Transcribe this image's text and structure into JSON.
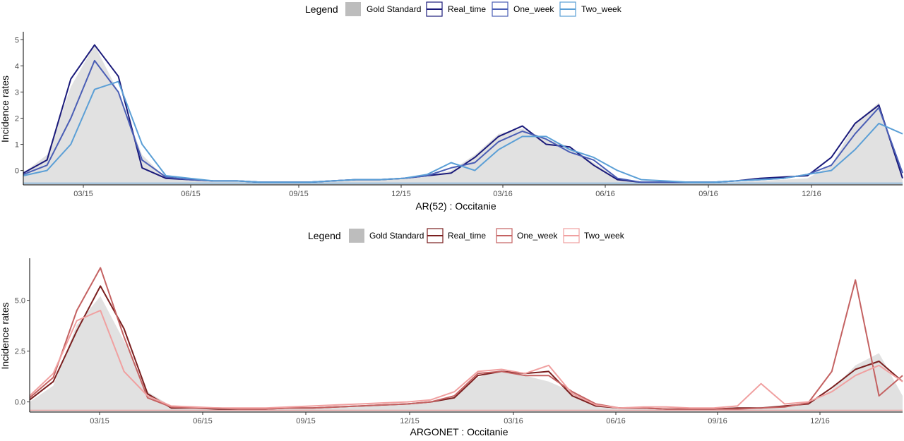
{
  "chart_data": [
    {
      "type": "line",
      "title": "",
      "xlabel": "AR(52) : Occitanie",
      "ylabel": "Incidence rates",
      "legend": {
        "title": "Legend",
        "placement": "top",
        "items": [
          {
            "label": "Gold Standard",
            "kind": "area",
            "color": "#bdbdbd"
          },
          {
            "label": "Real_time",
            "kind": "line",
            "color": "#1a1a7a"
          },
          {
            "label": "One_week",
            "kind": "line",
            "color": "#4a5eb5"
          },
          {
            "label": "Two_week",
            "kind": "line",
            "color": "#5b9fd6"
          }
        ]
      },
      "x_ticks": [
        "03/15",
        "06/15",
        "09/15",
        "12/15",
        "03/16",
        "06/16",
        "09/16",
        "12/16"
      ],
      "y_ticks": [
        "0",
        "1",
        "2",
        "3",
        "4",
        "5"
      ],
      "ylim": [
        -0.55,
        5.25
      ],
      "grid": false,
      "x_points": [
        0,
        3,
        6,
        9,
        12,
        15,
        18,
        21,
        24,
        27,
        30,
        33,
        36,
        39,
        42,
        45,
        48,
        51,
        54,
        57,
        60,
        63,
        66,
        69,
        72,
        75,
        78,
        81,
        84,
        87,
        90,
        93,
        96,
        99,
        102,
        105,
        108,
        111
      ],
      "series": [
        {
          "name": "Gold Standard",
          "values": [
            -0.1,
            0.6,
            3.2,
            4.8,
            3.0,
            0.6,
            -0.3,
            -0.35,
            -0.4,
            -0.4,
            -0.45,
            -0.45,
            -0.45,
            -0.4,
            -0.35,
            -0.35,
            -0.3,
            -0.2,
            0.0,
            0.6,
            1.4,
            1.6,
            1.2,
            0.9,
            0.3,
            -0.3,
            -0.45,
            -0.45,
            -0.45,
            -0.45,
            -0.45,
            -0.4,
            -0.35,
            -0.3,
            0.2,
            1.8,
            2.6,
            -0.4
          ]
        },
        {
          "name": "Real_time",
          "values": [
            -0.1,
            0.4,
            3.5,
            4.8,
            3.6,
            0.1,
            -0.3,
            -0.35,
            -0.4,
            -0.4,
            -0.45,
            -0.45,
            -0.45,
            -0.4,
            -0.35,
            -0.35,
            -0.3,
            -0.2,
            -0.1,
            0.5,
            1.3,
            1.7,
            1.0,
            0.9,
            0.2,
            -0.35,
            -0.45,
            -0.45,
            -0.45,
            -0.45,
            -0.4,
            -0.3,
            -0.25,
            -0.2,
            0.5,
            1.8,
            2.5,
            -0.3
          ]
        },
        {
          "name": "One_week",
          "values": [
            -0.15,
            0.2,
            2.0,
            4.2,
            3.0,
            0.4,
            -0.25,
            -0.35,
            -0.4,
            -0.4,
            -0.45,
            -0.45,
            -0.45,
            -0.4,
            -0.35,
            -0.35,
            -0.3,
            -0.2,
            0.1,
            0.3,
            1.1,
            1.5,
            1.2,
            0.7,
            0.4,
            -0.3,
            -0.45,
            -0.45,
            -0.45,
            -0.45,
            -0.4,
            -0.35,
            -0.3,
            -0.15,
            0.2,
            1.4,
            2.4,
            -0.1
          ]
        },
        {
          "name": "Two_week",
          "values": [
            -0.2,
            0.0,
            1.0,
            3.1,
            3.4,
            1.0,
            -0.2,
            -0.3,
            -0.4,
            -0.4,
            -0.45,
            -0.45,
            -0.45,
            -0.4,
            -0.35,
            -0.35,
            -0.3,
            -0.15,
            0.3,
            0.0,
            0.8,
            1.3,
            1.3,
            0.8,
            0.5,
            0.0,
            -0.35,
            -0.4,
            -0.45,
            -0.45,
            -0.4,
            -0.35,
            -0.3,
            -0.15,
            0.0,
            0.8,
            1.8,
            1.4
          ]
        }
      ]
    },
    {
      "type": "line",
      "title": "",
      "xlabel": "ARGONET : Occitanie",
      "ylabel": "Incidence rates",
      "legend": {
        "title": "Legend",
        "placement": "top",
        "items": [
          {
            "label": "Gold Standard",
            "kind": "area",
            "color": "#bdbdbd"
          },
          {
            "label": "Real_time",
            "kind": "line",
            "color": "#7a1f1f"
          },
          {
            "label": "One_week",
            "kind": "line",
            "color": "#c46262"
          },
          {
            "label": "Two_week",
            "kind": "line",
            "color": "#f0a0a0"
          }
        ]
      },
      "x_ticks": [
        "03/15",
        "06/15",
        "09/15",
        "12/15",
        "03/16",
        "06/16",
        "09/16",
        "12/16"
      ],
      "y_ticks": [
        "0.0",
        "2.5",
        "5.0"
      ],
      "ylim": [
        -0.5,
        7.0
      ],
      "grid": false,
      "x_points": [
        0,
        3,
        6,
        9,
        12,
        15,
        18,
        21,
        24,
        27,
        30,
        33,
        36,
        39,
        42,
        45,
        48,
        51,
        54,
        57,
        60,
        63,
        66,
        69,
        72,
        75,
        78,
        81,
        84,
        87,
        90,
        93,
        96,
        99,
        102,
        105,
        108,
        111
      ],
      "series": [
        {
          "name": "Gold Standard",
          "values": [
            0.0,
            0.8,
            3.8,
            5.2,
            3.0,
            0.5,
            -0.2,
            -0.25,
            -0.3,
            -0.3,
            -0.35,
            -0.35,
            -0.3,
            -0.2,
            -0.2,
            -0.15,
            -0.1,
            0.0,
            0.3,
            1.2,
            1.6,
            1.3,
            1.0,
            0.5,
            -0.1,
            -0.3,
            -0.3,
            -0.35,
            -0.35,
            -0.35,
            -0.3,
            -0.25,
            -0.2,
            -0.1,
            0.6,
            1.8,
            2.4,
            0.3
          ]
        },
        {
          "name": "Real_time",
          "values": [
            0.1,
            1.0,
            3.5,
            5.7,
            3.6,
            0.4,
            -0.3,
            -0.3,
            -0.35,
            -0.35,
            -0.35,
            -0.3,
            -0.3,
            -0.25,
            -0.2,
            -0.15,
            -0.1,
            0.0,
            0.2,
            1.3,
            1.5,
            1.4,
            1.5,
            0.3,
            -0.2,
            -0.3,
            -0.3,
            -0.35,
            -0.35,
            -0.35,
            -0.3,
            -0.3,
            -0.2,
            -0.1,
            0.7,
            1.6,
            2.0,
            1.0
          ]
        },
        {
          "name": "One_week",
          "values": [
            0.2,
            1.2,
            4.5,
            6.6,
            3.2,
            0.2,
            -0.25,
            -0.3,
            -0.3,
            -0.35,
            -0.35,
            -0.3,
            -0.3,
            -0.25,
            -0.2,
            -0.15,
            -0.1,
            0.0,
            0.3,
            1.4,
            1.5,
            1.3,
            1.3,
            0.5,
            -0.1,
            -0.3,
            -0.3,
            -0.35,
            -0.35,
            -0.35,
            -0.35,
            -0.3,
            -0.25,
            -0.05,
            1.5,
            6.0,
            0.3,
            1.3
          ]
        },
        {
          "name": "Two_week",
          "values": [
            0.3,
            1.4,
            4.0,
            4.5,
            1.5,
            0.3,
            -0.2,
            -0.25,
            -0.3,
            -0.3,
            -0.3,
            -0.25,
            -0.2,
            -0.15,
            -0.1,
            -0.05,
            0.0,
            0.1,
            0.5,
            1.5,
            1.6,
            1.4,
            1.8,
            0.4,
            -0.15,
            -0.3,
            -0.25,
            -0.25,
            -0.3,
            -0.3,
            -0.2,
            0.9,
            -0.1,
            0.0,
            0.5,
            1.3,
            1.8,
            1.0
          ]
        }
      ]
    }
  ]
}
